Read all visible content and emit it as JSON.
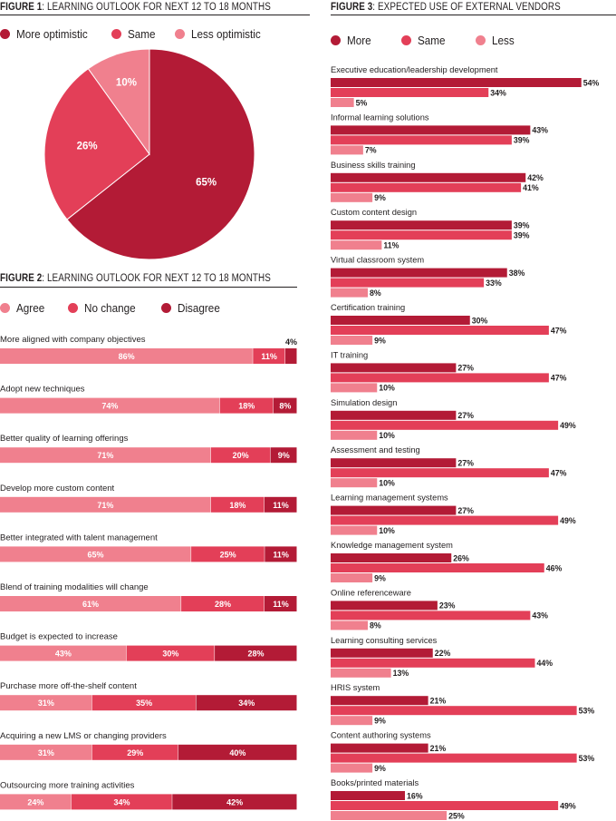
{
  "colors": {
    "dark": "#b31b36",
    "mid": "#e33f58",
    "light": "#f0808e"
  },
  "fig1": {
    "title_bold": "FIGURE 1",
    "title_rest": ": LEARNING OUTLOOK FOR NEXT 12 TO 18 MONTHS",
    "legend": [
      "More optimistic",
      "Same",
      "Less optimistic"
    ]
  },
  "fig2": {
    "title_bold": "FIGURE 2",
    "title_rest": ": LEARNING OUTLOOK FOR NEXT 12 TO 18 MONTHS",
    "legend": [
      "Agree",
      "No change",
      "Disagree"
    ]
  },
  "fig3": {
    "title_bold": "FIGURE 3",
    "title_rest": ": EXPECTED USE OF EXTERNAL VENDORS",
    "legend": [
      "More",
      "Same",
      "Less"
    ]
  },
  "chart_data": [
    {
      "type": "pie",
      "categories": [
        "More optimistic",
        "Same",
        "Less optimistic"
      ],
      "values": [
        65,
        26,
        10
      ],
      "labels": [
        "65%",
        "26%",
        "10%"
      ]
    },
    {
      "type": "bar",
      "orientation": "horizontal-stacked",
      "categories": [
        "More aligned with company objectives",
        "Adopt new techniques",
        "Better quality of learning offerings",
        "Develop more custom content",
        "Better integrated with talent management",
        "Blend of training modalities will change",
        "Budget is expected to increase",
        "Purchase more off-the-shelf content",
        "Acquiring a new LMS or changing providers",
        "Outsourcing more training activities"
      ],
      "series": [
        {
          "name": "Agree",
          "values": [
            86,
            74,
            71,
            71,
            65,
            61,
            43,
            31,
            31,
            24
          ]
        },
        {
          "name": "No change",
          "values": [
            11,
            18,
            20,
            18,
            25,
            28,
            30,
            35,
            29,
            34
          ]
        },
        {
          "name": "Disagree",
          "values": [
            4,
            8,
            9,
            11,
            11,
            11,
            28,
            34,
            40,
            42
          ]
        }
      ]
    },
    {
      "type": "bar",
      "orientation": "horizontal-grouped",
      "categories": [
        "Executive education/leadership development",
        "Informal learning solutions",
        "Business skills training",
        "Custom content design",
        "Virtual classroom system",
        "Certification training",
        "IT training",
        "Simulation design",
        "Assessment and testing",
        "Learning management systems",
        "Knowledge management system",
        "Online referenceware",
        "Learning consulting services",
        "HRIS system",
        "Content authoring systems",
        "Books/printed materials"
      ],
      "series": [
        {
          "name": "More",
          "values": [
            54,
            43,
            42,
            39,
            38,
            30,
            27,
            27,
            27,
            27,
            26,
            23,
            22,
            21,
            21,
            16
          ]
        },
        {
          "name": "Same",
          "values": [
            34,
            39,
            41,
            39,
            33,
            47,
            47,
            49,
            47,
            49,
            46,
            43,
            44,
            53,
            53,
            49
          ]
        },
        {
          "name": "Less",
          "values": [
            5,
            7,
            9,
            11,
            8,
            9,
            10,
            10,
            10,
            10,
            9,
            8,
            13,
            9,
            9,
            25
          ]
        }
      ]
    }
  ]
}
